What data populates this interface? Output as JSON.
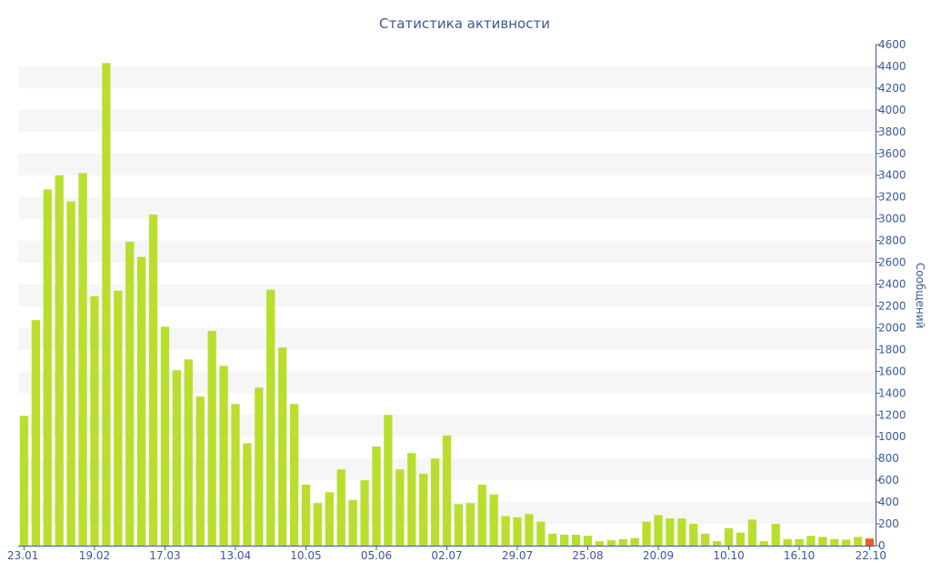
{
  "chart_data": {
    "type": "bar",
    "title": "Статистика активности",
    "xlabel": "",
    "ylabel": "Сообщений",
    "ylim": [
      0,
      4600
    ],
    "y_ticks": [
      0,
      200,
      400,
      600,
      800,
      1000,
      1200,
      1400,
      1600,
      1800,
      2000,
      2200,
      2400,
      2600,
      2800,
      3000,
      3200,
      3400,
      3600,
      3800,
      4000,
      4200,
      4400,
      4600
    ],
    "x_tick_labels": [
      {
        "index": 0,
        "label": "23.01"
      },
      {
        "index": 6,
        "label": "19.02"
      },
      {
        "index": 12,
        "label": "17.03"
      },
      {
        "index": 18,
        "label": "13.04"
      },
      {
        "index": 24,
        "label": "10.05"
      },
      {
        "index": 30,
        "label": "05.06"
      },
      {
        "index": 36,
        "label": "02.07"
      },
      {
        "index": 42,
        "label": "29.07"
      },
      {
        "index": 48,
        "label": "25.08"
      },
      {
        "index": 54,
        "label": "20.09"
      },
      {
        "index": 60,
        "label": "10.10"
      },
      {
        "index": 66,
        "label": "16.10"
      },
      {
        "index": 72,
        "label": "22.10"
      }
    ],
    "values": [
      1190,
      2070,
      3270,
      3400,
      3160,
      3420,
      2290,
      4430,
      2340,
      2790,
      2650,
      3040,
      2010,
      1610,
      1710,
      1370,
      1970,
      1650,
      1300,
      940,
      1450,
      2350,
      1820,
      1300,
      560,
      390,
      490,
      700,
      420,
      600,
      910,
      1200,
      700,
      850,
      660,
      800,
      1010,
      380,
      390,
      560,
      470,
      270,
      260,
      290,
      220,
      110,
      100,
      100,
      90,
      40,
      50,
      60,
      70,
      220,
      280,
      250,
      250,
      200,
      110,
      40,
      160,
      120,
      240,
      40,
      200,
      60,
      60,
      90,
      80,
      60,
      55,
      80,
      65
    ],
    "highlight_index": 72,
    "grid": "alternating horizontal bands",
    "y_axis_position": "right",
    "colors": {
      "bar": "#b8df2e",
      "highlight": "#e8602a",
      "band": "#f6f6f6",
      "axis": "#3b5998"
    }
  }
}
